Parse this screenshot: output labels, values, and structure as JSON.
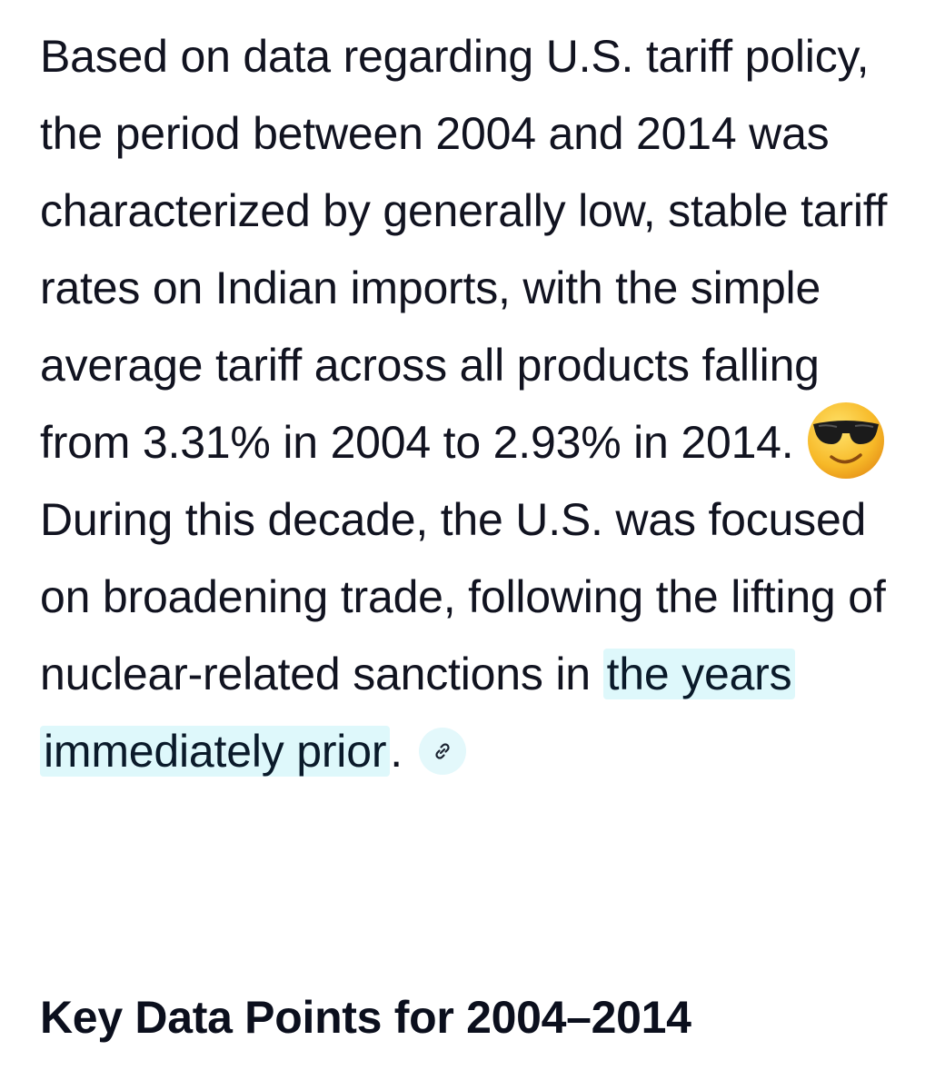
{
  "paragraph": {
    "text_before_emoji": "Based on data regarding U.S. tariff policy, the period between 2004 and 2014 was characterized by generally low, stable tariff rates on Indian imports, with the simple average tariff across all products falling from 3.31% in 2004 to 2.93% in 2014.",
    "emoji_icon": "smiling-face-with-sunglasses-icon",
    "text_after_emoji": "During this decade, the U.S. was focused on broadening trade, following the lifting of nuclear-related sanctions in",
    "highlighted_link_text": "the years immediately prior",
    "trailing_punctuation": ".",
    "citation_icon": "link-icon"
  },
  "heading": {
    "text": "Key Data Points for 2004–2014"
  },
  "colors": {
    "text": "#111320",
    "highlight_background": "#def8fb",
    "chip_background": "#e3f8fb"
  }
}
